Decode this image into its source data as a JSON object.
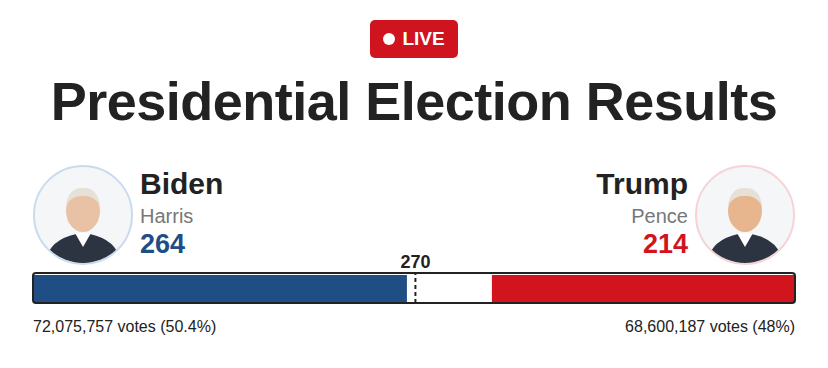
{
  "chart_data": {
    "type": "bar",
    "orientation": "horizontal",
    "stacked": true,
    "badge": "LIVE",
    "title": "Presidential Election Results",
    "xlim": [
      0,
      538
    ],
    "tick_labels": false,
    "data_labels": false,
    "threshold": 270,
    "series": [
      {
        "name": "Biden",
        "running_mate": "Harris",
        "color": "#1f4e85",
        "values": [
          264
        ],
        "votes_label": "72,075,757 votes (50.4%)"
      },
      {
        "name": "Trump",
        "running_mate": "Pence",
        "color": "#d2141f",
        "values": [
          214
        ],
        "votes_label": "68,600,187 votes (48%)"
      }
    ]
  }
}
